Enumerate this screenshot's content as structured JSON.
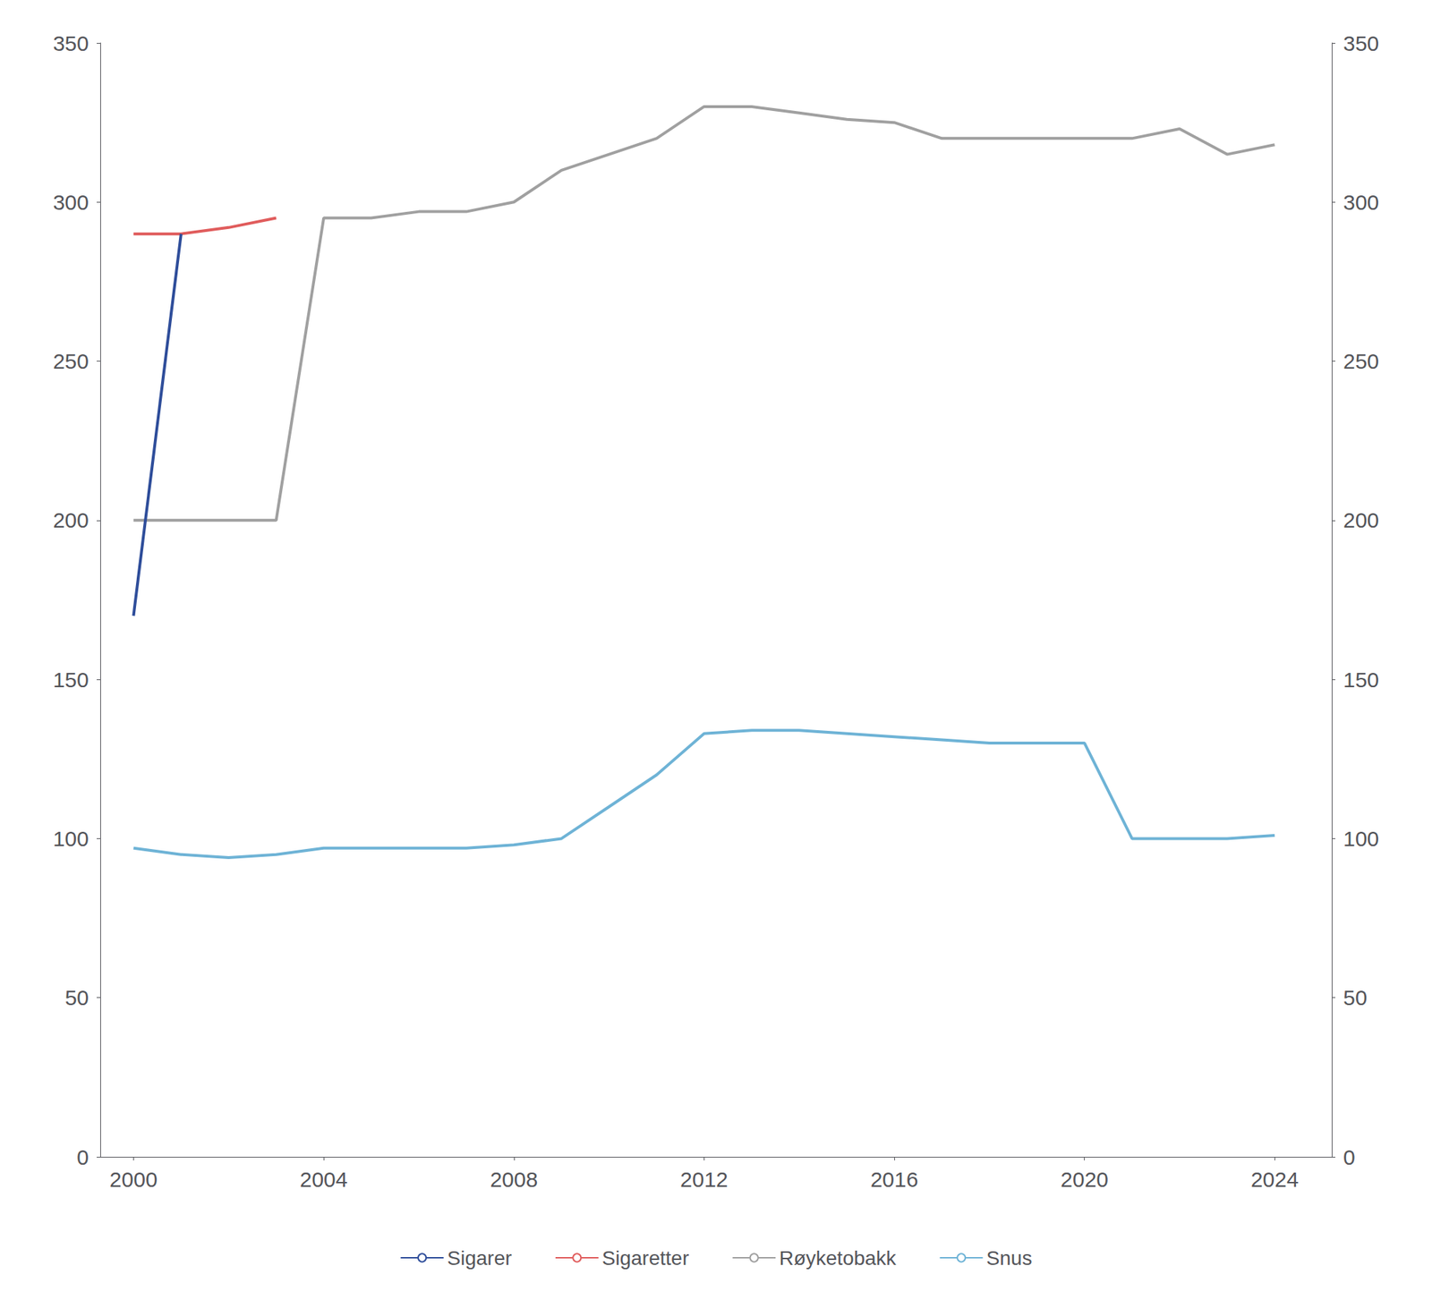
{
  "chart_data": {
    "type": "line",
    "x": [
      2000,
      2001,
      2002,
      2003,
      2004,
      2005,
      2006,
      2007,
      2008,
      2009,
      2010,
      2011,
      2012,
      2013,
      2014,
      2015,
      2016,
      2017,
      2018,
      2019,
      2020,
      2021,
      2022,
      2023,
      2024
    ],
    "series": [
      {
        "name": "Sigarer",
        "color": "#2E4D9A",
        "values": [
          170,
          290,
          null,
          null,
          null,
          null,
          null,
          null,
          null,
          null,
          null,
          null,
          null,
          null,
          null,
          null,
          null,
          null,
          null,
          null,
          null,
          null,
          null,
          null,
          null
        ]
      },
      {
        "name": "Sigaretter",
        "color": "#E05C5C",
        "values": [
          290,
          290,
          292,
          295,
          null,
          null,
          null,
          null,
          null,
          null,
          null,
          null,
          null,
          null,
          null,
          null,
          null,
          null,
          null,
          null,
          null,
          null,
          null,
          null,
          null
        ]
      },
      {
        "name": "Røyketobakk",
        "color": "#A0A0A0",
        "values": [
          200,
          200,
          200,
          200,
          295,
          295,
          297,
          297,
          300,
          310,
          315,
          320,
          330,
          330,
          328,
          326,
          325,
          320,
          320,
          320,
          320,
          320,
          323,
          315,
          318
        ]
      },
      {
        "name": "Snus",
        "color": "#6EB3D6",
        "values": [
          97,
          95,
          94,
          95,
          97,
          97,
          97,
          97,
          98,
          100,
          110,
          120,
          133,
          134,
          134,
          133,
          132,
          131,
          130,
          130,
          130,
          100,
          100,
          100,
          101
        ]
      }
    ],
    "xlim": [
      1999.3,
      2025.2
    ],
    "xticks": [
      2000,
      2004,
      2008,
      2012,
      2016,
      2020,
      2024
    ],
    "ylim": [
      0,
      350
    ],
    "yticks": [
      0,
      50,
      100,
      150,
      200,
      250,
      300,
      350
    ],
    "y2lim": [
      0,
      350
    ],
    "y2ticks": [
      0,
      50,
      100,
      150,
      200,
      250,
      300,
      350
    ],
    "grid": false,
    "legend": "bottom"
  }
}
